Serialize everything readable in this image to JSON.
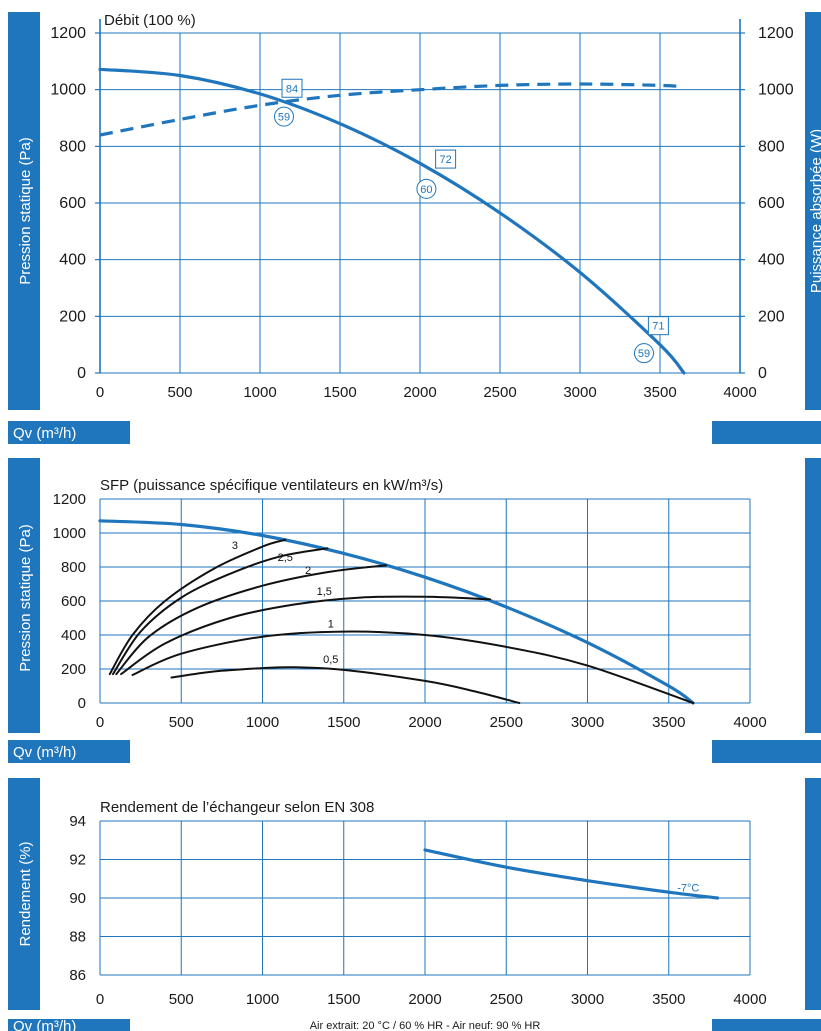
{
  "colors": {
    "band": "#1f76bd",
    "curve": "#1f76bd",
    "sfp": "#111111",
    "grid": "#1f76bd",
    "text": "#1a1a1a",
    "white": "#ffffff"
  },
  "chart_data": [
    {
      "type": "line",
      "title": "Débit (100 %)",
      "ylabel": "Pression statique (Pa)",
      "ylabel_right": "Puissance absorbée (W)",
      "xlabel": "Qv (m³/h)",
      "xlim": [
        0,
        4000
      ],
      "ylim": [
        0,
        1200
      ],
      "xticks": [
        0,
        500,
        1000,
        1500,
        2000,
        2500,
        3000,
        3500,
        4000
      ],
      "yticks": [
        0,
        200,
        400,
        600,
        800,
        1000,
        1200
      ],
      "grid": true,
      "series": [
        {
          "style": "solid",
          "x": [
            0,
            500,
            1000,
            1500,
            2000,
            2500,
            3000,
            3500,
            3650
          ],
          "y": [
            1072,
            1050,
            985,
            880,
            740,
            565,
            355,
            100,
            0
          ]
        },
        {
          "style": "dashed",
          "x": [
            0,
            500,
            1000,
            1500,
            2000,
            2500,
            3000,
            3500,
            3650
          ],
          "y": [
            840,
            895,
            945,
            980,
            1000,
            1015,
            1020,
            1015,
            1010
          ]
        }
      ],
      "annotations": [
        {
          "text": "84",
          "kind": "box",
          "x": 1200,
          "y": 1005
        },
        {
          "text": "59",
          "kind": "circle",
          "x": 1150,
          "y": 905
        },
        {
          "text": "72",
          "kind": "box",
          "x": 2160,
          "y": 755
        },
        {
          "text": "60",
          "kind": "circle",
          "x": 2040,
          "y": 650
        },
        {
          "text": "71",
          "kind": "box",
          "x": 3490,
          "y": 167
        },
        {
          "text": "59",
          "kind": "circle",
          "x": 3400,
          "y": 70
        }
      ]
    },
    {
      "type": "line",
      "title": "SFP (puissance spécifique ventilateurs en kW/m³/s)",
      "ylabel": "Pression statique (Pa)",
      "xlabel": "Qv (m³/h)",
      "xlim": [
        0,
        4000
      ],
      "ylim": [
        0,
        1200
      ],
      "xticks": [
        0,
        500,
        1000,
        1500,
        2000,
        2500,
        3000,
        3500,
        4000
      ],
      "yticks": [
        0,
        200,
        400,
        600,
        800,
        1000,
        1200
      ],
      "grid": true,
      "series": [
        {
          "style": "blue",
          "x": [
            0,
            500,
            1000,
            1500,
            2000,
            2500,
            3000,
            3500,
            3650
          ],
          "y": [
            1072,
            1050,
            985,
            880,
            740,
            565,
            355,
            100,
            0
          ]
        },
        {
          "name": "0,5",
          "style": "black",
          "x": [
            440,
            700,
            1000,
            1200,
            1500,
            2000,
            2300,
            2580
          ],
          "y": [
            150,
            185,
            205,
            210,
            195,
            130,
            70,
            0
          ]
        },
        {
          "name": "1",
          "style": "black",
          "x": [
            200,
            500,
            1000,
            1500,
            2000,
            2500,
            3000,
            3650
          ],
          "y": [
            165,
            290,
            390,
            420,
            400,
            330,
            220,
            0
          ]
        },
        {
          "name": "1,5",
          "style": "black",
          "x": [
            130,
            400,
            800,
            1200,
            1600,
            2000,
            2400
          ],
          "y": [
            170,
            350,
            500,
            580,
            620,
            625,
            610
          ]
        },
        {
          "name": "2",
          "style": "black",
          "x": [
            100,
            300,
            600,
            1000,
            1400,
            1760
          ],
          "y": [
            170,
            390,
            560,
            690,
            770,
            810
          ]
        },
        {
          "name": "2,5",
          "style": "black",
          "x": [
            80,
            250,
            500,
            800,
            1100,
            1400
          ],
          "y": [
            170,
            420,
            620,
            760,
            860,
            910
          ]
        },
        {
          "name": "3",
          "style": "black",
          "x": [
            60,
            200,
            400,
            700,
            1000,
            1140
          ],
          "y": [
            170,
            400,
            600,
            790,
            920,
            960
          ]
        }
      ],
      "series_labels": [
        {
          "text": "3",
          "x": 830,
          "y": 905
        },
        {
          "text": "2,5",
          "x": 1140,
          "y": 835
        },
        {
          "text": "2",
          "x": 1280,
          "y": 760
        },
        {
          "text": "1,5",
          "x": 1380,
          "y": 635
        },
        {
          "text": "1",
          "x": 1420,
          "y": 445
        },
        {
          "text": "0,5",
          "x": 1420,
          "y": 235
        }
      ]
    },
    {
      "type": "line",
      "title": "Rendement de l’échangeur selon EN 308",
      "ylabel": "Rendement (%)",
      "xlabel": "Qv (m³/h)",
      "xlim": [
        0,
        4000
      ],
      "ylim": [
        86,
        94
      ],
      "xticks": [
        0,
        500,
        1000,
        1500,
        2000,
        2500,
        3000,
        3500,
        4000
      ],
      "yticks": [
        86,
        88,
        90,
        92,
        94
      ],
      "grid": true,
      "series": [
        {
          "name": "-7°C",
          "style": "blue",
          "x": [
            2000,
            2500,
            3000,
            3500,
            3800
          ],
          "y": [
            92.5,
            91.6,
            90.9,
            90.3,
            90.0
          ]
        }
      ],
      "footnote": "Air extrait: 20 °C / 60 % HR - Air neuf: 90 % HR"
    }
  ]
}
